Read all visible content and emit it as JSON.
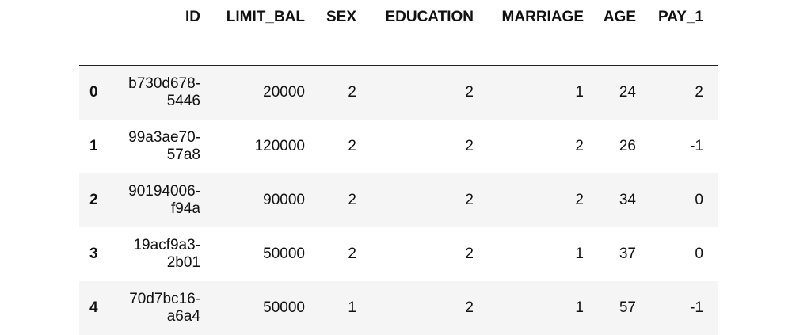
{
  "table": {
    "columns": [
      "ID",
      "LIMIT_BAL",
      "SEX",
      "EDUCATION",
      "MARRIAGE",
      "AGE",
      "PAY_1"
    ],
    "rows": [
      {
        "index": "0",
        "cells": [
          "b730d678-5446",
          "20000",
          "2",
          "2",
          "1",
          "24",
          "2"
        ]
      },
      {
        "index": "1",
        "cells": [
          "99a3ae70-57a8",
          "120000",
          "2",
          "2",
          "2",
          "26",
          "-1"
        ]
      },
      {
        "index": "2",
        "cells": [
          "90194006-f94a",
          "90000",
          "2",
          "2",
          "2",
          "34",
          "0"
        ]
      },
      {
        "index": "3",
        "cells": [
          "19acf9a3-2b01",
          "50000",
          "2",
          "2",
          "1",
          "37",
          "0"
        ]
      },
      {
        "index": "4",
        "cells": [
          "70d7bc16-a6a4",
          "50000",
          "1",
          "2",
          "1",
          "57",
          "-1"
        ]
      }
    ]
  }
}
